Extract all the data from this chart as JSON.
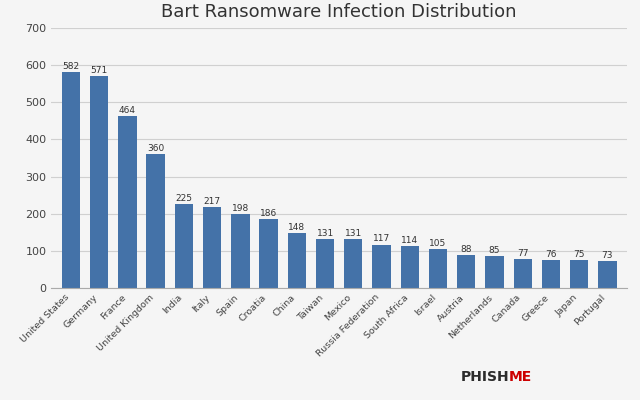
{
  "title": "Bart Ransomware Infection Distribution",
  "categories": [
    "United States",
    "Germany",
    "France",
    "United Kingdom",
    "India",
    "Italy",
    "Spain",
    "Croatia",
    "China",
    "Taiwan",
    "Mexico",
    "Russia Federation",
    "South Africa",
    "Israel",
    "Austria",
    "Netherlands",
    "Canada",
    "Greece",
    "Japan",
    "Portugal"
  ],
  "values": [
    582,
    571,
    464,
    360,
    225,
    217,
    198,
    186,
    148,
    131,
    131,
    117,
    114,
    105,
    88,
    85,
    77,
    76,
    75,
    73
  ],
  "bar_color": "#4472a8",
  "ylim": [
    0,
    700
  ],
  "yticks": [
    0,
    100,
    200,
    300,
    400,
    500,
    600,
    700
  ],
  "background_color": "#f5f5f5",
  "grid_color": "#d0d0d0",
  "title_fontsize": 13,
  "label_fontsize": 6.8,
  "value_fontsize": 6.5,
  "ytick_fontsize": 8,
  "phishme_dark": "#2b2b2b",
  "phishme_red": "#cc0000"
}
